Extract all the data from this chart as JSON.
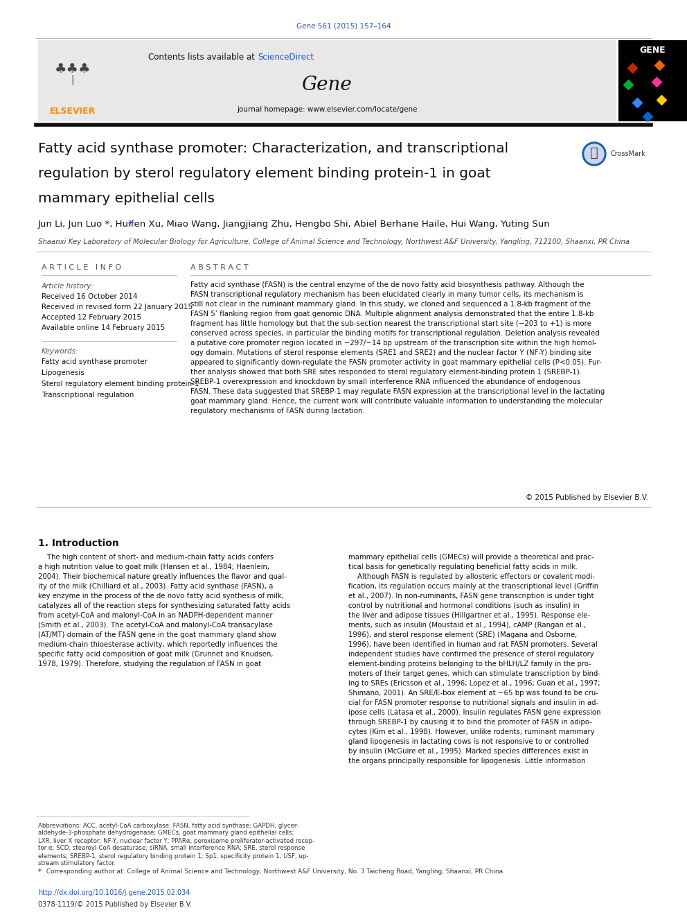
{
  "page_width": 9.92,
  "page_height": 13.23,
  "bg_color": "#ffffff",
  "journal_ref": "Gene 561 (2015) 157–164",
  "journal_ref_color": "#2255cc",
  "contents_label": "Contents lists available at ",
  "sciencedirect_text": "ScienceDirect",
  "sciencedirect_color": "#2255cc",
  "journal_name": "Gene",
  "journal_homepage": "journal homepage: www.elsevier.com/locate/gene",
  "header_bg": "#e8e8e8",
  "article_title_line1": "Fatty acid synthase promoter: Characterization, and transcriptional",
  "article_title_line2": "regulation by sterol regulatory element binding protein-1 in goat",
  "article_title_line3": "mammary epithelial cells",
  "authors_full": "Jun Li, Jun Luo *, Huifen Xu, Miao Wang, Jiangjiang Zhu, Hengbo Shi, Abiel Berhane Haile, Hui Wang, Yuting Sun",
  "affiliation": "Shaanxi Key Laboratory of Molecular Biology for Agriculture, College of Animal Science and Technology, Northwest A&F University, Yangling, 712100, Shaanxi, PR China",
  "article_info_header": "A R T I C L E   I N F O",
  "abstract_header": "A B S T R A C T",
  "article_history_label": "Article history:",
  "received": "Received 16 October 2014",
  "revised": "Received in revised form 22 January 2015",
  "accepted": "Accepted 12 February 2015",
  "available": "Available online 14 February 2015",
  "keywords_label": "Keywords:",
  "keyword1": "Fatty acid synthase promoter",
  "keyword2": "Lipogenesis",
  "keyword3": "Sterol regulatory element binding protein-1",
  "keyword4": "Transcriptional regulation",
  "abstract_lines": [
    "Fatty acid synthase (FASN) is the central enzyme of the de novo fatty acid biosynthesis pathway. Although the",
    "FASN transcriptional regulatory mechanism has been elucidated clearly in many tumor cells, its mechanism is",
    "still not clear in the ruminant mammary gland. In this study, we cloned and sequenced a 1.8-kb fragment of the",
    "FASN 5’ flanking region from goat genomic DNA. Multiple alignment analysis demonstrated that the entire 1.8-kb",
    "fragment has little homology but that the sub-section nearest the transcriptional start site (−203 to +1) is more",
    "conserved across species, in particular the binding motifs for transcriptional regulation. Deletion analysis revealed",
    "a putative core promoter region located in −297/−14 bp upstream of the transcription site within the high homol-",
    "ogy domain. Mutations of sterol response elements (SRE1 and SRE2) and the nuclear factor Y (NF-Y) binding site",
    "appeared to significantly down-regulate the FASN promoter activity in goat mammary epithelial cells (P<0.05). Fur-",
    "ther analysis showed that both SRE sites responded to sterol regulatory element-binding protein 1 (SREBP-1).",
    "SREBP-1 overexpression and knockdown by small interference RNA influenced the abundance of endogenous",
    "FASN. These data suggested that SREBP-1 may regulate FASN expression at the transcriptional level in the lactating",
    "goat mammary gland. Hence, the current work will contribute valuable information to understanding the molecular",
    "regulatory mechanisms of FASN during lactation."
  ],
  "copyright": "© 2015 Published by Elsevier B.V.",
  "section1_title": "1. Introduction",
  "intro_col1_lines": [
    "    The high content of short- and medium-chain fatty acids confers",
    "a high nutrition value to goat milk (Hansen et al., 1984; Haenlein,",
    "2004). Their biochemical nature greatly influences the flavor and qual-",
    "ity of the milk (Chilliard et al., 2003). Fatty acid synthase (FASN), a",
    "key enzyme in the process of the de novo fatty acid synthesis of milk,",
    "catalyzes all of the reaction steps for synthesizing saturated fatty acids",
    "from acetyl-CoA and malonyl-CoA in an NADPH-dependent manner",
    "(Smith et al., 2003). The acetyl-CoA and malonyl-CoA transacylase",
    "(AT/MT) domain of the FASN gene in the goat mammary gland show",
    "medium-chain thioesterase activity, which reportedly influences the",
    "specific fatty acid composition of goat milk (Grunnet and Knudsen,",
    "1978, 1979). Therefore, studying the regulation of FASN in goat"
  ],
  "intro_col2_lines": [
    "mammary epithelial cells (GMECs) will provide a theoretical and prac-",
    "tical basis for genetically regulating beneficial fatty acids in milk.",
    "    Although FASN is regulated by allosteric effectors or covalent modi-",
    "fication, its regulation occurs mainly at the transcriptional level (Griffin",
    "et al., 2007). In non-ruminants, FASN gene transcription is under tight",
    "control by nutritional and hormonal conditions (such as insulin) in",
    "the liver and adipose tissues (Hillgartner et al., 1995). Response ele-",
    "ments, such as insulin (Moustaid et al., 1994), cAMP (Rangan et al.,",
    "1996), and sterol response element (SRE) (Magana and Osborne,",
    "1996), have been identified in human and rat FASN promoters. Several",
    "independent studies have confirmed the presence of sterol regulatory",
    "element-binding proteins belonging to the bHLH/LZ family in the pro-",
    "moters of their target genes, which can stimulate transcription by bind-",
    "ing to SREs (Ericsson et al., 1996; Lopez et al., 1996; Guan et al., 1997;",
    "Shimano, 2001). An SRE/E-box element at −65 bp was found to be cru-",
    "cial for FASN promoter response to nutritional signals and insulin in ad-",
    "ipose cells (Latasa et al., 2000). Insulin regulates FASN gene expression",
    "through SREBP-1 by causing it to bind the promoter of FASN in adipo-",
    "cytes (Kim et al., 1998). However, unlike rodents, ruminant mammary",
    "gland lipogenesis in lactating cows is not responsive to or controlled",
    "by insulin (McGuire et al., 1995). Marked species differences exist in",
    "the organs principally responsible for lipogenesis. Little information"
  ],
  "footnote_abbrev_lines": [
    "Abbreviations: ACC, acetyl-CoA carboxylase; FASN, fatty acid synthase; GAPDH, glycer-",
    "aldehyde-3-phosphate dehydrogenase; GMECs, goat mammary gland epithelial cells;",
    "LXR, liver X receptor; NF-Y, nuclear factor Y; PPARα, peroxisome proliferator-activated recep-",
    "tor α; SCD, stearoyl-CoA desaturase; siRNA, small interference RNA; SRE, sterol response",
    "elements; SREBP-1, sterol regulatory binding protein 1; Sp1, specificity protein 1; USF, up-",
    "stream stimulatory factor."
  ],
  "footnote_corresponding": " Corresponding author at: College of Animal Science and Technology, Northwest A&F University, No. 3 Taicheng Road, Yangling, Shaanxi, PR China.",
  "doi_text": "http://dx.doi.org/10.1016/j.gene.2015.02.034",
  "issn_text": "0378-1119/© 2015 Published by Elsevier B.V.",
  "link_color": "#2255cc",
  "elsevier_color": "#FF8C00",
  "gem_colors": [
    "#cc2200",
    "#ee6600",
    "#00aa33",
    "#ff3399",
    "#3388ff",
    "#ffcc00",
    "#0066cc"
  ]
}
